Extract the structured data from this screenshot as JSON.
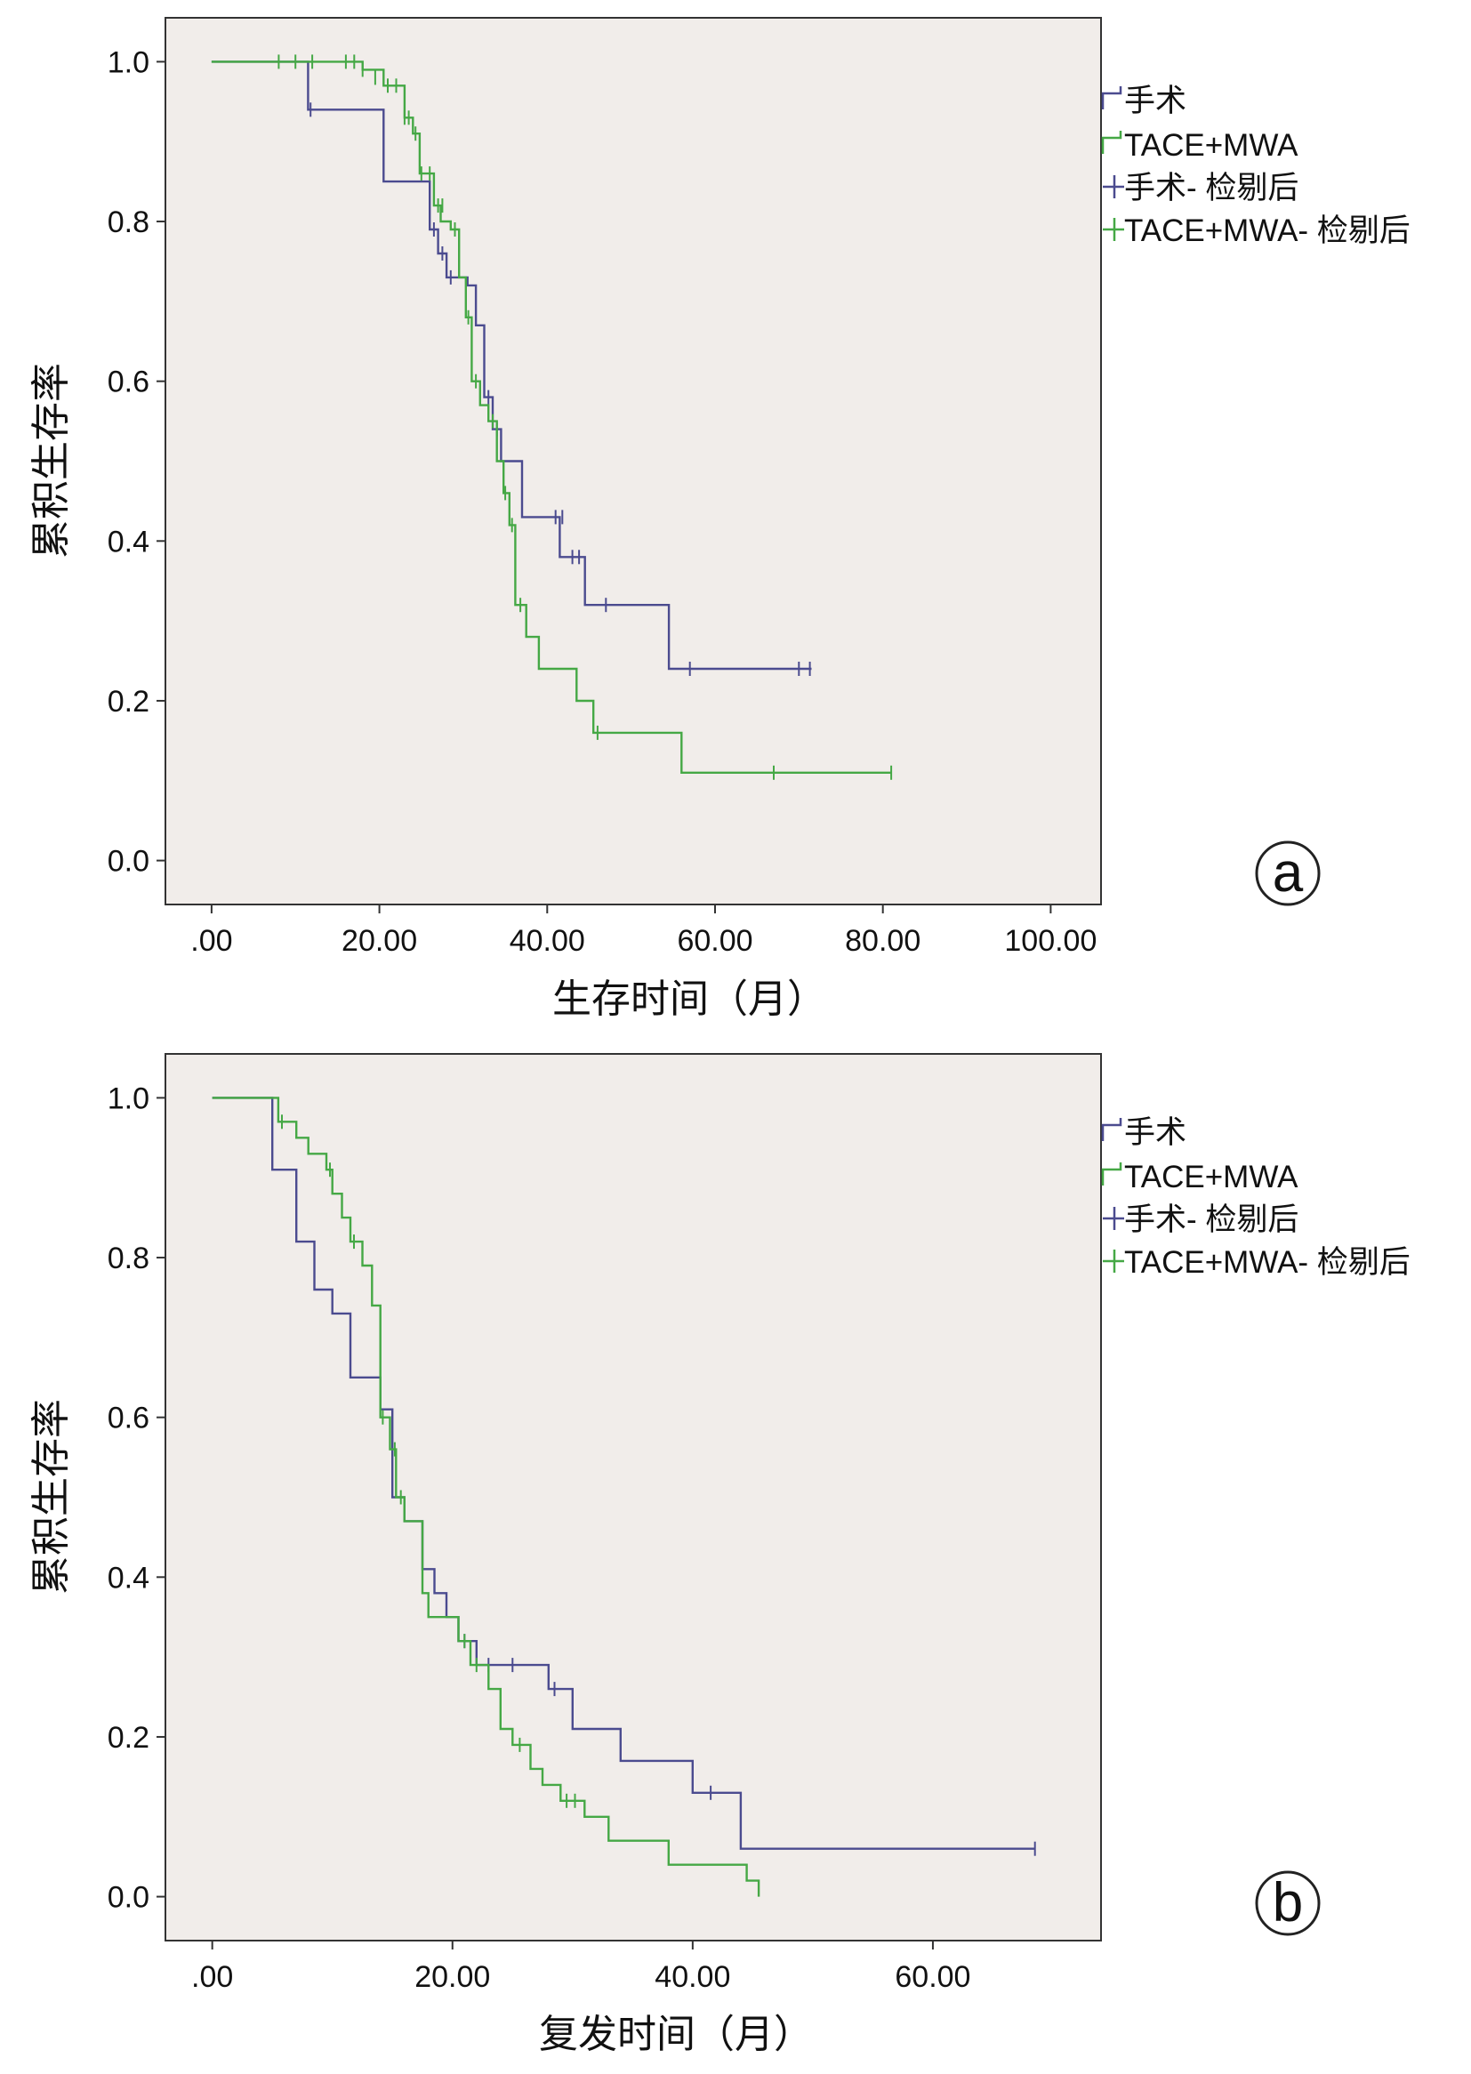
{
  "colors": {
    "surgery": "#4b4b8f",
    "tace_mwa": "#45a845",
    "plot_bg": "#f1edea",
    "frame": "#333333"
  },
  "chart_data": [
    {
      "type": "line",
      "subtype": "kaplan-meier-step",
      "panel_label": "a",
      "xlabel": "生存时间（月）",
      "ylabel": "累积生存率",
      "xlim": [
        -5.5,
        106
      ],
      "ylim": [
        -0.055,
        1.055
      ],
      "x_ticks": [
        0,
        20,
        40,
        60,
        80,
        100
      ],
      "x_tick_labels": [
        ".00",
        "20.00",
        "40.00",
        "60.00",
        "80.00",
        "100.00"
      ],
      "y_ticks": [
        0,
        0.2,
        0.4,
        0.6,
        0.8,
        1.0
      ],
      "y_tick_labels": [
        "0.0",
        "0.2",
        "0.4",
        "0.6",
        "0.8",
        "1.0"
      ],
      "grid": false,
      "legend": {
        "placement": "right",
        "entries": [
          "手术",
          "TACE+MWA",
          "手术- 检剔后",
          "TACE+MWA- 检剔后"
        ]
      },
      "series": [
        {
          "name": "手术",
          "color_key": "surgery",
          "steps": [
            [
              0,
              1.0
            ],
            [
              11.5,
              0.94
            ],
            [
              20.5,
              0.85
            ],
            [
              24.5,
              0.85
            ],
            [
              26,
              0.79
            ],
            [
              27,
              0.76
            ],
            [
              28,
              0.73
            ],
            [
              30.5,
              0.72
            ],
            [
              31.5,
              0.67
            ],
            [
              32.5,
              0.58
            ],
            [
              33.5,
              0.54
            ],
            [
              34.5,
              0.5
            ],
            [
              37,
              0.43
            ],
            [
              41.5,
              0.38
            ],
            [
              44.5,
              0.32
            ],
            [
              54.5,
              0.24
            ]
          ],
          "end_x": 71.5,
          "censored": [
            [
              11.8,
              0.94
            ],
            [
              26.5,
              0.79
            ],
            [
              27.5,
              0.76
            ],
            [
              28.5,
              0.73
            ],
            [
              33,
              0.58
            ],
            [
              34,
              0.54
            ],
            [
              41,
              0.43
            ],
            [
              41.8,
              0.43
            ],
            [
              43,
              0.38
            ],
            [
              43.8,
              0.38
            ],
            [
              47,
              0.32
            ],
            [
              57,
              0.24
            ],
            [
              70,
              0.24
            ],
            [
              71.3,
              0.24
            ]
          ]
        },
        {
          "name": "TACE+MWA",
          "color_key": "tace_mwa",
          "steps": [
            [
              0,
              1.0
            ],
            [
              18,
              0.99
            ],
            [
              20.5,
              0.97
            ],
            [
              23,
              0.93
            ],
            [
              24,
              0.91
            ],
            [
              24.8,
              0.86
            ],
            [
              26.5,
              0.82
            ],
            [
              27.3,
              0.8
            ],
            [
              28.5,
              0.79
            ],
            [
              29.5,
              0.73
            ],
            [
              30.3,
              0.68
            ],
            [
              31,
              0.6
            ],
            [
              32,
              0.57
            ],
            [
              33,
              0.55
            ],
            [
              34,
              0.5
            ],
            [
              34.8,
              0.46
            ],
            [
              35.5,
              0.42
            ],
            [
              36.2,
              0.32
            ],
            [
              37.5,
              0.28
            ],
            [
              39,
              0.24
            ],
            [
              43.5,
              0.2
            ],
            [
              45.5,
              0.16
            ],
            [
              56,
              0.11
            ]
          ],
          "end_x": 81,
          "censored": [
            [
              8,
              1.0
            ],
            [
              10,
              1.0
            ],
            [
              12,
              1.0
            ],
            [
              16,
              1.0
            ],
            [
              17,
              1.0
            ],
            [
              18,
              0.99
            ],
            [
              19.5,
              0.98
            ],
            [
              21,
              0.97
            ],
            [
              22,
              0.97
            ],
            [
              23,
              0.93
            ],
            [
              23.5,
              0.93
            ],
            [
              24.3,
              0.91
            ],
            [
              25,
              0.86
            ],
            [
              26,
              0.86
            ],
            [
              27,
              0.82
            ],
            [
              27.5,
              0.82
            ],
            [
              29,
              0.79
            ],
            [
              30.6,
              0.68
            ],
            [
              31.5,
              0.6
            ],
            [
              33.5,
              0.55
            ],
            [
              35,
              0.46
            ],
            [
              35.8,
              0.42
            ],
            [
              36.8,
              0.32
            ],
            [
              46,
              0.16
            ],
            [
              67,
              0.11
            ],
            [
              81,
              0.11
            ]
          ]
        }
      ]
    },
    {
      "type": "line",
      "subtype": "kaplan-meier-step",
      "panel_label": "b",
      "xlabel": "复发时间（月）",
      "ylabel": "累积生存率",
      "xlim": [
        -3.9,
        74
      ],
      "ylim": [
        -0.055,
        1.055
      ],
      "x_ticks": [
        0,
        20,
        40,
        60
      ],
      "x_tick_labels": [
        ".00",
        "20.00",
        "40.00",
        "60.00"
      ],
      "y_ticks": [
        0,
        0.2,
        0.4,
        0.6,
        0.8,
        1.0
      ],
      "y_tick_labels": [
        "0.0",
        "0.2",
        "0.4",
        "0.6",
        "0.8",
        "1.0"
      ],
      "grid": false,
      "legend": {
        "placement": "right",
        "entries": [
          "手术",
          "TACE+MWA",
          "手术- 检剔后",
          "TACE+MWA- 检剔后"
        ]
      },
      "series": [
        {
          "name": "手术",
          "color_key": "surgery",
          "steps": [
            [
              0,
              1.0
            ],
            [
              5,
              0.91
            ],
            [
              7,
              0.82
            ],
            [
              8.5,
              0.76
            ],
            [
              10,
              0.73
            ],
            [
              11.5,
              0.65
            ],
            [
              14,
              0.61
            ],
            [
              15,
              0.5
            ],
            [
              16,
              0.47
            ],
            [
              17.5,
              0.41
            ],
            [
              18.5,
              0.38
            ],
            [
              19.5,
              0.35
            ],
            [
              20.5,
              0.32
            ],
            [
              22,
              0.29
            ],
            [
              28,
              0.26
            ],
            [
              30,
              0.21
            ],
            [
              34,
              0.17
            ],
            [
              40,
              0.13
            ],
            [
              44,
              0.06
            ]
          ],
          "end_x": 68.5,
          "censored": [
            [
              21,
              0.32
            ],
            [
              23,
              0.29
            ],
            [
              25,
              0.29
            ],
            [
              28.5,
              0.26
            ],
            [
              41.5,
              0.13
            ],
            [
              68.5,
              0.06
            ]
          ]
        },
        {
          "name": "TACE+MWA",
          "color_key": "tace_mwa",
          "steps": [
            [
              0,
              1.0
            ],
            [
              5.5,
              0.97
            ],
            [
              7,
              0.95
            ],
            [
              8,
              0.93
            ],
            [
              9.5,
              0.91
            ],
            [
              10,
              0.88
            ],
            [
              10.8,
              0.85
            ],
            [
              11.5,
              0.82
            ],
            [
              12.5,
              0.79
            ],
            [
              13.3,
              0.74
            ],
            [
              14,
              0.6
            ],
            [
              14.8,
              0.56
            ],
            [
              15.3,
              0.5
            ],
            [
              16,
              0.47
            ],
            [
              17.5,
              0.38
            ],
            [
              18,
              0.35
            ],
            [
              20.5,
              0.32
            ],
            [
              21.5,
              0.29
            ],
            [
              23,
              0.26
            ],
            [
              24,
              0.21
            ],
            [
              25,
              0.19
            ],
            [
              26.5,
              0.16
            ],
            [
              27.5,
              0.14
            ],
            [
              29,
              0.12
            ],
            [
              31,
              0.1
            ],
            [
              33,
              0.07
            ],
            [
              38,
              0.04
            ],
            [
              44.5,
              0.02
            ],
            [
              45.5,
              0.0
            ]
          ],
          "end_x": 45.5,
          "censored": [
            [
              5.8,
              0.97
            ],
            [
              9.8,
              0.91
            ],
            [
              11.8,
              0.82
            ],
            [
              14.2,
              0.6
            ],
            [
              15.2,
              0.56
            ],
            [
              15.7,
              0.5
            ],
            [
              21,
              0.32
            ],
            [
              22,
              0.29
            ],
            [
              25.6,
              0.19
            ],
            [
              29.5,
              0.12
            ],
            [
              30.2,
              0.12
            ]
          ]
        }
      ]
    }
  ]
}
